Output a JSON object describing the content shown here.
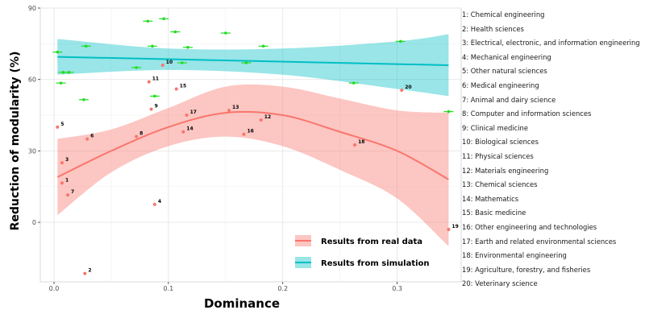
{
  "chart_data": {
    "type": "scatter",
    "xlabel": "Dominance",
    "ylabel": "Reduction of modularity (%)",
    "xlim": [
      -0.012,
      0.356
    ],
    "ylim": [
      -25,
      90
    ],
    "x_ticks": [
      0.0,
      0.1,
      0.2,
      0.3
    ],
    "x_tick_labels": [
      "0.0",
      "0.1",
      "0.2",
      "0.3"
    ],
    "y_ticks": [
      0,
      30,
      60,
      90
    ],
    "y_tick_labels": [
      "0",
      "30",
      "60",
      "90"
    ],
    "grid": true,
    "legend_position": "bottom-right",
    "series": [
      {
        "name": "Results from real data",
        "color": "#F8766D",
        "points": [
          {
            "label": "1",
            "x": 0.007,
            "y": 16.5
          },
          {
            "label": "2",
            "x": 0.027,
            "y": -21.5
          },
          {
            "label": "3",
            "x": 0.007,
            "y": 25
          },
          {
            "label": "4",
            "x": 0.088,
            "y": 7.5
          },
          {
            "label": "5",
            "x": 0.003,
            "y": 40
          },
          {
            "label": "6",
            "x": 0.029,
            "y": 35
          },
          {
            "label": "7",
            "x": 0.012,
            "y": 11.5
          },
          {
            "label": "8",
            "x": 0.072,
            "y": 36
          },
          {
            "label": "9",
            "x": 0.085,
            "y": 47.5
          },
          {
            "label": "10",
            "x": 0.095,
            "y": 66
          },
          {
            "label": "11",
            "x": 0.083,
            "y": 59
          },
          {
            "label": "12",
            "x": 0.181,
            "y": 43
          },
          {
            "label": "13",
            "x": 0.153,
            "y": 47
          },
          {
            "label": "14",
            "x": 0.113,
            "y": 38
          },
          {
            "label": "15",
            "x": 0.107,
            "y": 56
          },
          {
            "label": "16",
            "x": 0.166,
            "y": 37
          },
          {
            "label": "17",
            "x": 0.116,
            "y": 45
          },
          {
            "label": "18",
            "x": 0.263,
            "y": 32.5
          },
          {
            "label": "19",
            "x": 0.345,
            "y": -3
          },
          {
            "label": "20",
            "x": 0.304,
            "y": 55.5
          }
        ],
        "fit_line": [
          {
            "x": 0.003,
            "y": 19
          },
          {
            "x": 0.05,
            "y": 30
          },
          {
            "x": 0.1,
            "y": 40
          },
          {
            "x": 0.15,
            "y": 46
          },
          {
            "x": 0.2,
            "y": 45
          },
          {
            "x": 0.25,
            "y": 38
          },
          {
            "x": 0.3,
            "y": 30
          },
          {
            "x": 0.345,
            "y": 18
          }
        ],
        "ci_upper": [
          {
            "x": 0.003,
            "y": 35
          },
          {
            "x": 0.05,
            "y": 39
          },
          {
            "x": 0.1,
            "y": 48
          },
          {
            "x": 0.15,
            "y": 57
          },
          {
            "x": 0.2,
            "y": 57
          },
          {
            "x": 0.25,
            "y": 52
          },
          {
            "x": 0.3,
            "y": 47
          },
          {
            "x": 0.345,
            "y": 46
          }
        ],
        "ci_lower": [
          {
            "x": 0.003,
            "y": 3
          },
          {
            "x": 0.05,
            "y": 21
          },
          {
            "x": 0.1,
            "y": 32
          },
          {
            "x": 0.15,
            "y": 36
          },
          {
            "x": 0.2,
            "y": 32
          },
          {
            "x": 0.25,
            "y": 22
          },
          {
            "x": 0.3,
            "y": 10
          },
          {
            "x": 0.345,
            "y": -10
          }
        ]
      },
      {
        "name": "Results from simulation",
        "color": "#00BFC4",
        "point_color": "#22DD22",
        "points": [
          {
            "x": 0.003,
            "y": 71.5
          },
          {
            "x": 0.006,
            "y": 58.5
          },
          {
            "x": 0.008,
            "y": 63
          },
          {
            "x": 0.013,
            "y": 63
          },
          {
            "x": 0.026,
            "y": 51.5
          },
          {
            "x": 0.028,
            "y": 74
          },
          {
            "x": 0.072,
            "y": 65
          },
          {
            "x": 0.082,
            "y": 84.5
          },
          {
            "x": 0.086,
            "y": 74
          },
          {
            "x": 0.088,
            "y": 53
          },
          {
            "x": 0.096,
            "y": 85.5
          },
          {
            "x": 0.106,
            "y": 80
          },
          {
            "x": 0.112,
            "y": 67
          },
          {
            "x": 0.117,
            "y": 73.5
          },
          {
            "x": 0.15,
            "y": 79.5
          },
          {
            "x": 0.168,
            "y": 67
          },
          {
            "x": 0.183,
            "y": 74
          },
          {
            "x": 0.262,
            "y": 58.5
          },
          {
            "x": 0.303,
            "y": 76
          },
          {
            "x": 0.345,
            "y": 46.5
          }
        ],
        "fit_line": [
          {
            "x": 0.003,
            "y": 69.5
          },
          {
            "x": 0.345,
            "y": 66
          }
        ],
        "ci_upper": [
          {
            "x": 0.003,
            "y": 77
          },
          {
            "x": 0.1,
            "y": 73
          },
          {
            "x": 0.2,
            "y": 73
          },
          {
            "x": 0.3,
            "y": 76
          },
          {
            "x": 0.345,
            "y": 79
          }
        ],
        "ci_lower": [
          {
            "x": 0.003,
            "y": 62
          },
          {
            "x": 0.1,
            "y": 64
          },
          {
            "x": 0.2,
            "y": 62
          },
          {
            "x": 0.3,
            "y": 56
          },
          {
            "x": 0.345,
            "y": 53
          }
        ]
      }
    ]
  },
  "field_list": [
    "1: Chemical engineering",
    "2: Health sciences",
    "3: Electrical, electronic, and information engineering",
    "4: Mechanical engineering",
    "5: Other natural sciences",
    "6: Medical engineering",
    "7: Animal and dairy science",
    "8: Computer and information sciences",
    "9: Clinical medicine",
    "10: Biological sciences",
    "11: Physical sciences",
    "12: Materials engineering",
    "13: Chemical sciences",
    "14: Mathematics",
    "15: Basic medicine",
    "16: Other engineering and technologies",
    "17: Earth and related environmental sciences",
    "18: Environmental engineering",
    "19: Agriculture, forestry, and fisheries",
    "20: Veterinary science"
  ]
}
